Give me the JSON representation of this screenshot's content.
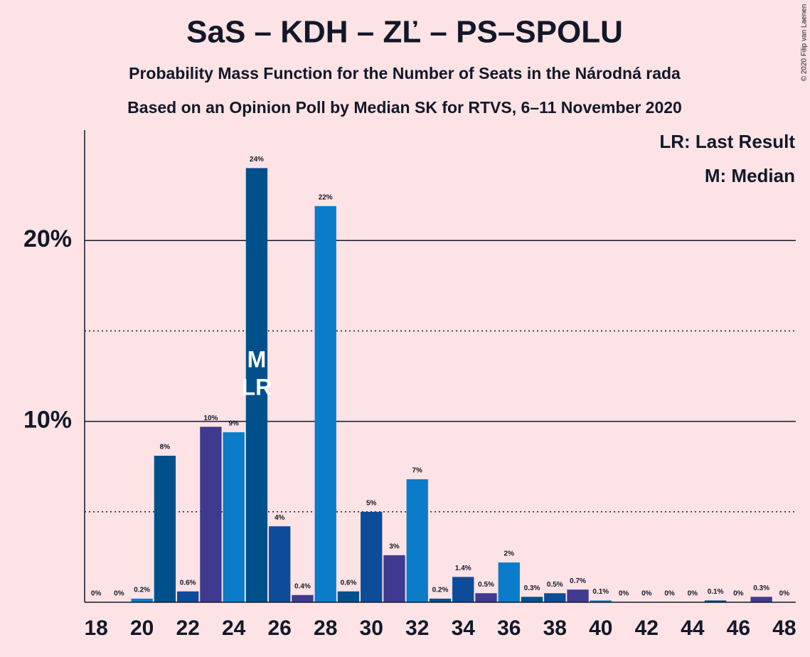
{
  "chart_data": {
    "type": "bar",
    "title": "SaS – KDH – ZĽ – PS–SPOLU",
    "subtitle": "Probability Mass Function for the Number of Seats in the Národná rada",
    "subtitle2": "Based on an Opinion Poll by Median SK for RTVS, 6–11 November 2020",
    "copyright": "© 2020 Filip van Laenen",
    "x": [
      18,
      19,
      20,
      21,
      22,
      23,
      24,
      25,
      26,
      27,
      28,
      29,
      30,
      31,
      32,
      33,
      34,
      35,
      36,
      37,
      38,
      39,
      40,
      41,
      42,
      43,
      44,
      45,
      46,
      47,
      48
    ],
    "values": [
      0,
      0,
      0.2,
      8.1,
      0.6,
      9.7,
      9.4,
      24.0,
      4.2,
      0.4,
      21.9,
      0.6,
      5.0,
      2.6,
      6.8,
      0.2,
      1.4,
      0.5,
      2.2,
      0.3,
      0.5,
      0.7,
      0.1,
      0,
      0,
      0,
      0,
      0.1,
      0,
      0.3,
      0
    ],
    "value_labels": [
      "0%",
      "0%",
      "0.2%",
      "8%",
      "0.6%",
      "10%",
      "9%",
      "24%",
      "4%",
      "0.4%",
      "22%",
      "0.6%",
      "5%",
      "3%",
      "7%",
      "0.2%",
      "1.4%",
      "0.5%",
      "2%",
      "0.3%",
      "0.5%",
      "0.7%",
      "0.1%",
      "0%",
      "0%",
      "0%",
      "0%",
      "0.1%",
      "0%",
      "0.3%",
      "0%"
    ],
    "colors": [
      "#0a7cc9",
      "#00508c",
      "#0a7cc9",
      "#00508c",
      "#0d4c98",
      "#3f3a8f",
      "#0a7cc9",
      "#00508c",
      "#0d4c98",
      "#3f3a8f",
      "#0a7cc9",
      "#00508c",
      "#0d4c98",
      "#3f3a8f",
      "#0a7cc9",
      "#00508c",
      "#0d4c98",
      "#3f3a8f",
      "#0a7cc9",
      "#00508c",
      "#0d4c98",
      "#3f3a8f",
      "#0a7cc9",
      "#00508c",
      "#0d4c98",
      "#3f3a8f",
      "#0a7cc9",
      "#00508c",
      "#0d4c98",
      "#3f3a8f",
      "#0a7cc9"
    ],
    "xlim": [
      17.5,
      48.5
    ],
    "xticks": [
      18,
      20,
      22,
      24,
      26,
      28,
      30,
      32,
      34,
      36,
      38,
      40,
      42,
      44,
      46,
      48
    ],
    "ylim": [
      0,
      26.1
    ],
    "yticks": [
      {
        "value": 10,
        "label": "10%"
      },
      {
        "value": 20,
        "label": "20%"
      }
    ],
    "yminor": [
      5,
      15
    ],
    "markers": [
      {
        "x": 25,
        "text": "M"
      },
      {
        "x": 25,
        "text": "LR"
      }
    ],
    "legend": [
      "LR: Last Result",
      "M: Median"
    ]
  }
}
